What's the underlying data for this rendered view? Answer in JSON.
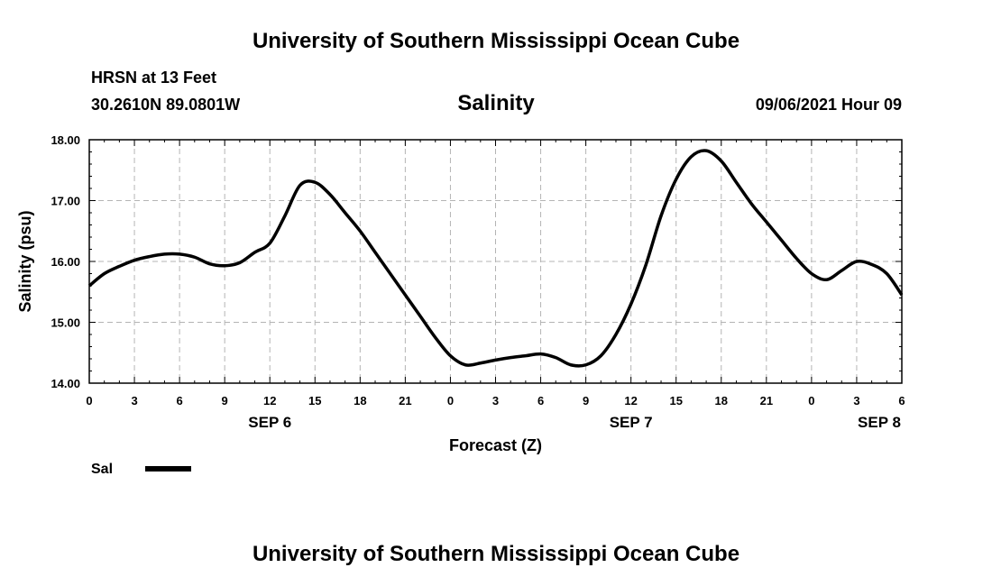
{
  "page": {
    "title_top": "University of Southern Mississippi Ocean Cube",
    "title_bottom": "University of Southern Mississippi Ocean Cube",
    "station": "HRSN at 13 Feet",
    "coords": "30.2610N  89.0801W",
    "datetime": "09/06/2021 Hour 09"
  },
  "chart_data": {
    "type": "line",
    "title": "Salinity",
    "xlabel": "Forecast (Z)",
    "ylabel": "Salinity (psu)",
    "ylim": [
      14.0,
      18.0
    ],
    "xlim": [
      0,
      54
    ],
    "x_unit": "hours from 09/06/2021 00Z",
    "grid": true,
    "y_ticks": [
      "14.00",
      "15.00",
      "16.00",
      "17.00",
      "18.00"
    ],
    "x_tick_labels": [
      "0",
      "3",
      "6",
      "9",
      "12",
      "15",
      "18",
      "21",
      "0",
      "3",
      "6",
      "9",
      "12",
      "15",
      "18",
      "21",
      "0",
      "3",
      "6"
    ],
    "day_labels": [
      {
        "label": "SEP 6",
        "hour": 12
      },
      {
        "label": "SEP 7",
        "hour": 36
      },
      {
        "label": "SEP 8",
        "hour": 52.5
      }
    ],
    "legend": {
      "position": "bottom-left"
    },
    "series": [
      {
        "name": "Sal",
        "color": "#000000",
        "x": [
          0,
          1,
          2,
          3,
          4,
          5,
          6,
          7,
          8,
          9,
          10,
          11,
          12,
          13,
          14,
          15,
          16,
          17,
          18,
          19,
          20,
          21,
          22,
          23,
          24,
          25,
          26,
          27,
          28,
          29,
          30,
          31,
          32,
          33,
          34,
          35,
          36,
          37,
          38,
          39,
          40,
          41,
          42,
          43,
          44,
          45,
          46,
          47,
          48,
          49,
          50,
          51,
          52,
          53,
          54
        ],
        "values": [
          15.6,
          15.8,
          15.92,
          16.02,
          16.08,
          16.12,
          16.12,
          16.07,
          15.96,
          15.93,
          15.98,
          16.15,
          16.3,
          16.75,
          17.25,
          17.3,
          17.1,
          16.8,
          16.5,
          16.15,
          15.8,
          15.45,
          15.1,
          14.75,
          14.45,
          14.3,
          14.33,
          14.38,
          14.42,
          14.45,
          14.48,
          14.42,
          14.3,
          14.3,
          14.45,
          14.8,
          15.3,
          15.95,
          16.75,
          17.35,
          17.72,
          17.82,
          17.65,
          17.3,
          16.95,
          16.65,
          16.35,
          16.05,
          15.8,
          15.7,
          15.85,
          16.0,
          15.95,
          15.8,
          15.45
        ]
      }
    ]
  }
}
